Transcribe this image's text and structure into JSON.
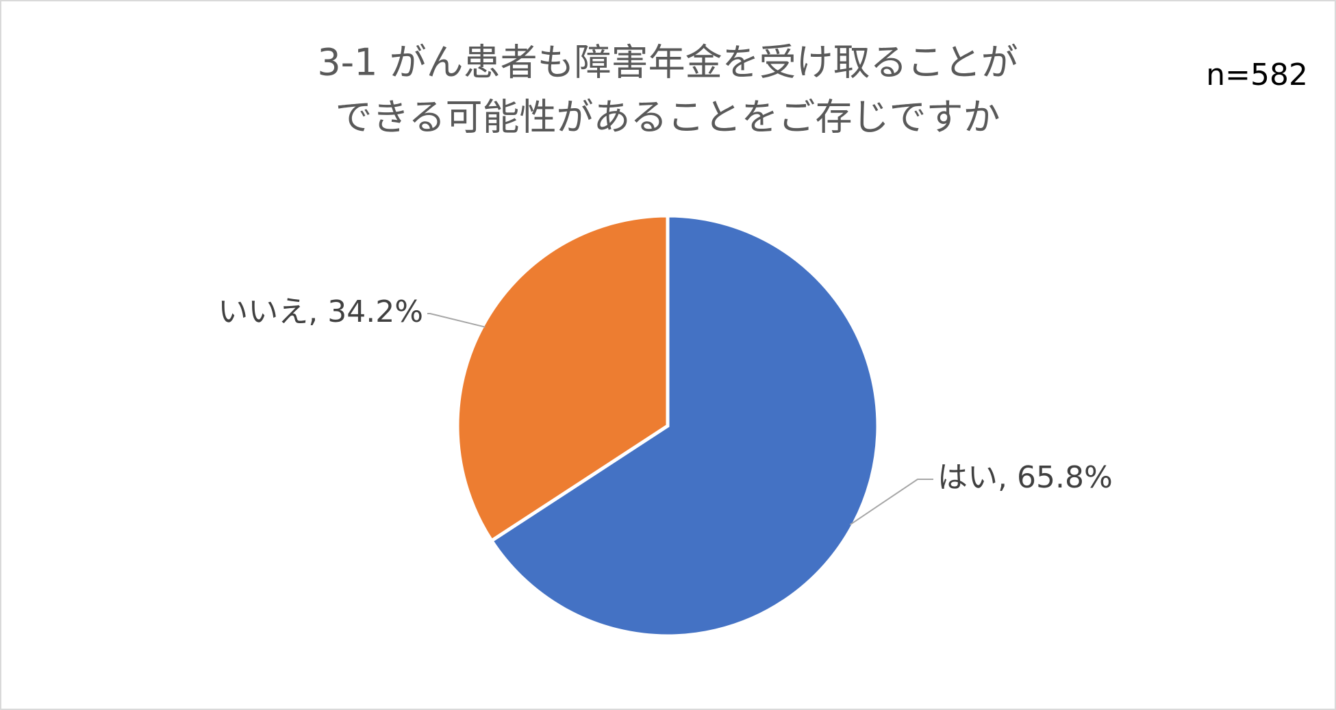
{
  "chart_data": {
    "type": "pie",
    "title": [
      "3-1 がん患者も障害年金を受け取ることが",
      "できる可能性があることをご存じですか"
    ],
    "annotation": "n=582",
    "categories": [
      "はい",
      "いいえ"
    ],
    "values": [
      65.8,
      34.2
    ],
    "value_labels": [
      "はい, 65.8%",
      "いいえ, 34.2%"
    ],
    "colors": [
      "#4472c4",
      "#ed7d31"
    ]
  }
}
